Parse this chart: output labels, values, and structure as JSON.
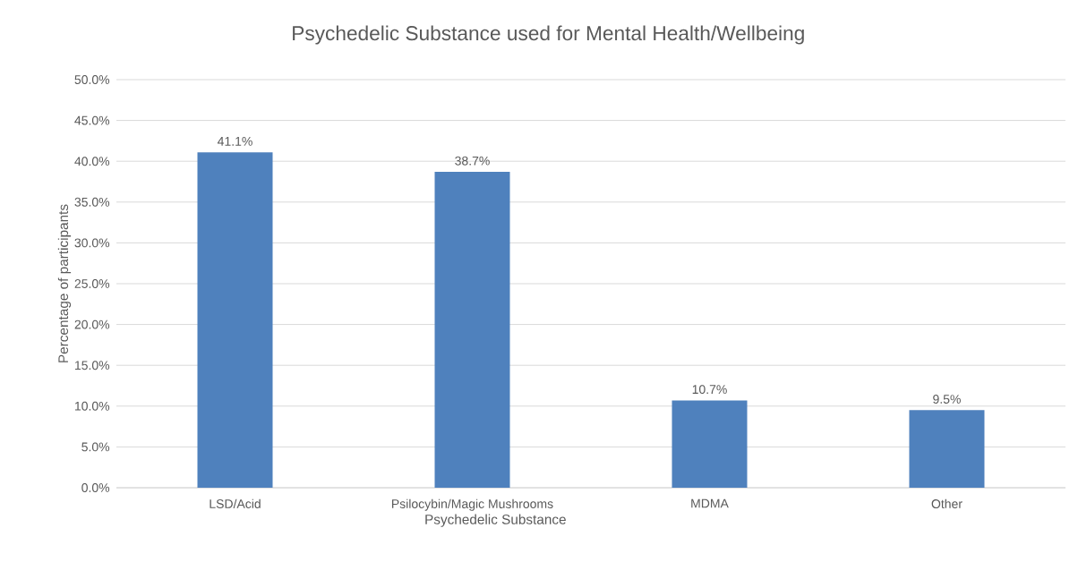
{
  "chart_data": {
    "type": "bar",
    "title": "Psychedelic Substance used for Mental Health/Wellbeing",
    "xlabel": "Psychedelic Substance",
    "ylabel": "Percentage of participants",
    "categories": [
      "LSD/Acid",
      "Psilocybin/Magic Mushrooms",
      "MDMA",
      "Other"
    ],
    "values": [
      41.1,
      38.7,
      10.7,
      9.5
    ],
    "value_labels": [
      "41.1%",
      "38.7%",
      "10.7%",
      "9.5%"
    ],
    "color": "#4f81bd",
    "ylim": [
      0,
      50
    ],
    "yticks": [
      {
        "value": 0,
        "label": "0.0%"
      },
      {
        "value": 5,
        "label": "5.0%"
      },
      {
        "value": 10,
        "label": "10.0%"
      },
      {
        "value": 15,
        "label": "15.0%"
      },
      {
        "value": 20,
        "label": "20.0%"
      },
      {
        "value": 25,
        "label": "25.0%"
      },
      {
        "value": 30,
        "label": "30.0%"
      },
      {
        "value": 35,
        "label": "35.0%"
      },
      {
        "value": 40,
        "label": "40.0%"
      },
      {
        "value": 45,
        "label": "45.0%"
      },
      {
        "value": 50,
        "label": "50.0%"
      }
    ],
    "grid": "y"
  }
}
